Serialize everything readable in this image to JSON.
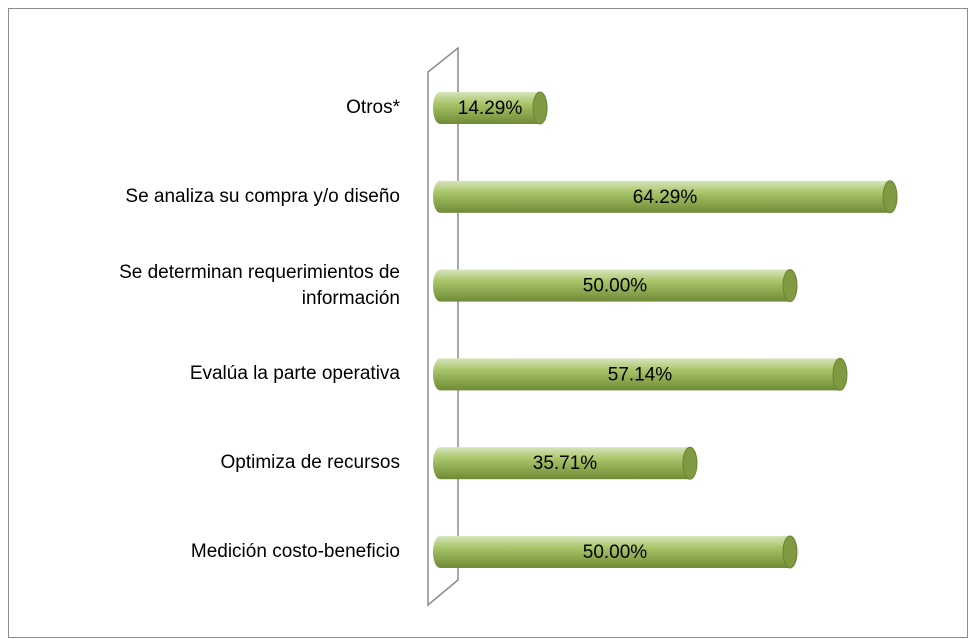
{
  "chart_data": {
    "type": "bar",
    "orientation": "horizontal",
    "style": "3d-cylinder",
    "categories": [
      "Otros*",
      "Se analiza su compra y/o diseño",
      "Se determinan requerimientos de\ninformación",
      "Evalúa la parte operativa",
      "Optimiza de recursos",
      "Medición costo-beneficio"
    ],
    "values": [
      14.29,
      64.29,
      50.0,
      57.14,
      35.71,
      50.0
    ],
    "value_labels": [
      "14.29%",
      "64.29%",
      "50.00%",
      "57.14%",
      "35.71%",
      "50.00%"
    ],
    "color": "#9bbb59"
  }
}
